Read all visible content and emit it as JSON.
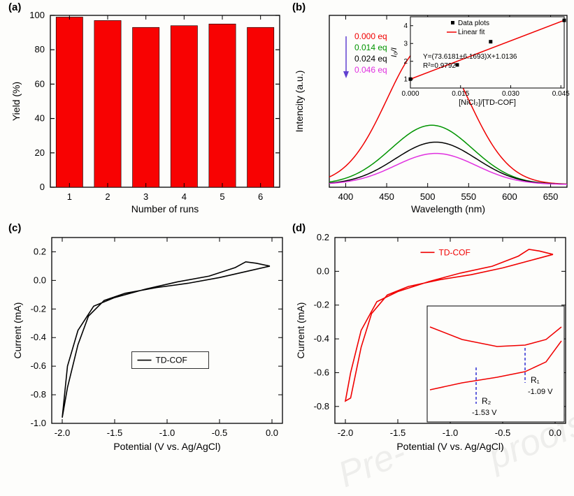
{
  "labels": {
    "a": "(a)",
    "b": "(b)",
    "c": "(c)",
    "d": "(d)"
  },
  "a": {
    "type": "bar",
    "x_label": "Number of runs",
    "y_label": "Yield (%)",
    "bars": [
      1,
      2,
      3,
      4,
      5,
      6
    ],
    "values": [
      99,
      97,
      93,
      94,
      95,
      93
    ],
    "ylim": [
      0,
      100
    ],
    "ytick_step": 20,
    "bar_color": "#f80202",
    "bar_stroke": "#000000",
    "axis_color": "#000000",
    "tick_inside": true,
    "fontsize": 13,
    "plot_bg": "#fdfdfb"
  },
  "b": {
    "type": "spectra",
    "x_label": "Wavelength (nm)",
    "y_label": "Intencity (a.u.)",
    "xlim": [
      380,
      670
    ],
    "xticks": [
      400,
      450,
      500,
      550,
      600,
      650
    ],
    "curves": [
      {
        "color": "#f00000",
        "peak": 500,
        "height": 1.0,
        "label": "0.000 eq"
      },
      {
        "color": "#009400",
        "peak": 505,
        "height": 0.42,
        "label": "0.014 eq"
      },
      {
        "color": "#000000",
        "peak": 510,
        "height": 0.3,
        "label": "0.024 eq"
      },
      {
        "color": "#e030e0",
        "peak": 510,
        "height": 0.22,
        "label": "0.046 eq"
      }
    ],
    "axis_color": "#000000",
    "fontsize": 13,
    "arrow_color": "#6040d0",
    "inset": {
      "x_label": "[NiCl₂]/[TD-COF]",
      "y_label": "I₀/I",
      "xlim": [
        0.0,
        0.046
      ],
      "xticks": [
        "0.000",
        "0.015",
        "0.030",
        "0.045"
      ],
      "ylim": [
        0.5,
        4.5
      ],
      "yticks": [
        1,
        2,
        3,
        4
      ],
      "points": [
        [
          0.0,
          1.0
        ],
        [
          0.014,
          1.8
        ],
        [
          0.024,
          3.1
        ],
        [
          0.046,
          4.3
        ]
      ],
      "fit_color": "#f00000",
      "point_color": "#000000",
      "equation": "Y=(73.6181±6.1693)X+1.0136",
      "rsq": "R²=0.9792",
      "legend": [
        "Data plots",
        "Linear fit"
      ]
    }
  },
  "c": {
    "type": "cv",
    "x_label": "Potential (V vs. Ag/AgCl)",
    "y_label": "Current (mA)",
    "xlim": [
      -2.1,
      0.1
    ],
    "xticks": [
      "-2.0",
      "-1.5",
      "-1.0",
      "-0.5",
      "0.0"
    ],
    "ylim": [
      -1.0,
      0.3
    ],
    "yticks": [
      "-1.0",
      "-0.8",
      "-0.6",
      "-0.4",
      "-0.2",
      "0.0",
      "0.2"
    ],
    "line_color": "#000000",
    "legend": "TD-COF",
    "fontsize": 13
  },
  "d": {
    "type": "cv",
    "x_label": "Potential (V vs. Ag/AgCl)",
    "y_label": "Current (mA)",
    "xlim": [
      -2.1,
      0.1
    ],
    "xticks": [
      "-2.0",
      "-1.5",
      "-1.0",
      "-0.5",
      "0.0"
    ],
    "ylim": [
      -0.9,
      0.2
    ],
    "yticks": [
      "-0.8",
      "-0.6",
      "-0.4",
      "-0.2",
      "0.0",
      "0.2"
    ],
    "line_color": "#f00000",
    "legend": "TD-COF",
    "fontsize": 13,
    "inset": {
      "marker_color": "#2020d0",
      "r1": {
        "label": "R₁",
        "v": "-1.09 V"
      },
      "r2": {
        "label": "R₂",
        "v": "-1.53 V"
      }
    }
  }
}
